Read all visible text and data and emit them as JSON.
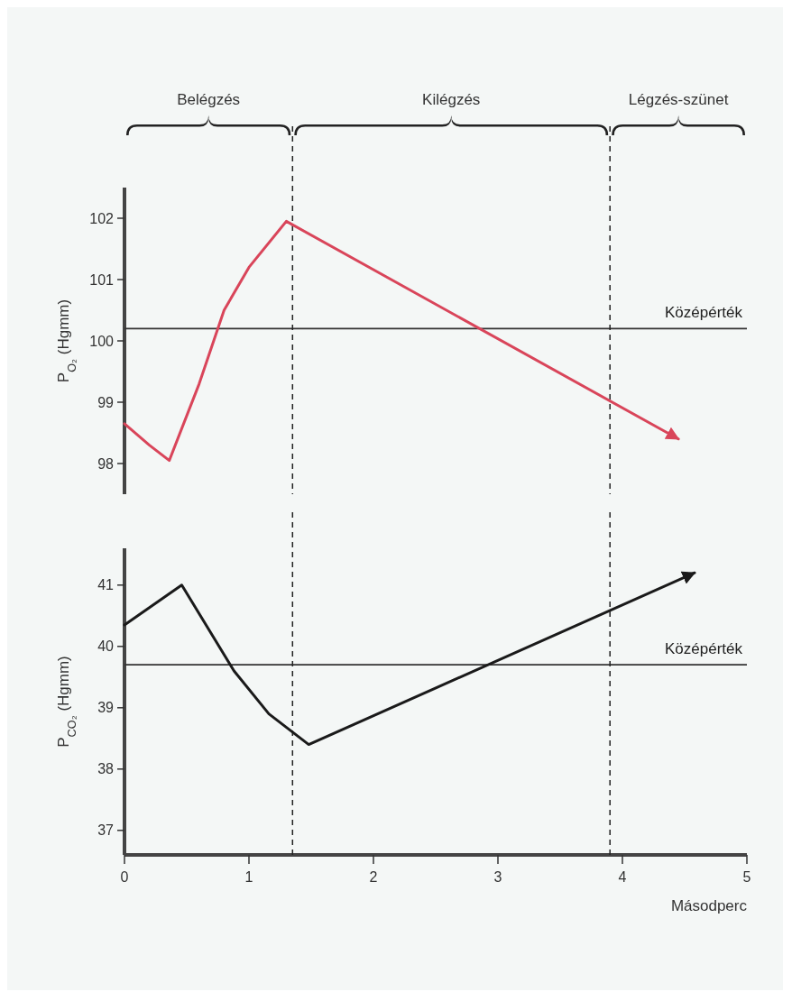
{
  "chart_data": [
    {
      "type": "line",
      "ylabel": "P$_{O₂}$ (Hgmm)",
      "xlim": [
        0,
        5
      ],
      "ylim": [
        97.5,
        102.5
      ],
      "yticks": [
        98,
        99,
        100,
        101,
        102
      ],
      "tick_labels": "y",
      "line_style": "solid",
      "marker": "none",
      "series": [
        {
          "color": "#d9455a",
          "x": [
            0,
            0.2,
            0.36,
            0.6,
            0.8,
            1.0,
            1.3,
            4.45
          ],
          "values": [
            98.65,
            98.3,
            98.05,
            99.3,
            100.5,
            101.2,
            101.95,
            98.4
          ]
        }
      ],
      "ref_lines": [
        {
          "axis": "y",
          "value": 100.2,
          "label": "Középérték",
          "color": "#333333",
          "line_style": "solid"
        },
        {
          "axis": "x",
          "value": 1.35,
          "color": "#222222",
          "line_style": "dashed"
        },
        {
          "axis": "x",
          "value": 3.9,
          "color": "#222222",
          "line_style": "dashed"
        }
      ],
      "annotations": [
        "Belégzés",
        "Kilégzés",
        "Légzés-szünet"
      ]
    },
    {
      "type": "line",
      "ylabel": "P$_{CO₂}$ (Hgmm)",
      "xlabel": "Másodperc",
      "xlim": [
        0,
        5
      ],
      "xticks": [
        0,
        1,
        2,
        3,
        4,
        5
      ],
      "ylim": [
        36.6,
        41.6
      ],
      "yticks": [
        37,
        38,
        39,
        40,
        41
      ],
      "line_style": "solid",
      "marker": "none",
      "series": [
        {
          "color": "#1a1a1a",
          "x": [
            0,
            0.46,
            0.88,
            1.16,
            1.48,
            4.58
          ],
          "values": [
            40.35,
            41.0,
            39.6,
            38.9,
            38.4,
            41.2
          ]
        }
      ],
      "ref_lines": [
        {
          "axis": "y",
          "value": 39.7,
          "label": "Középérték",
          "color": "#333333",
          "line_style": "solid"
        },
        {
          "axis": "x",
          "value": 1.35,
          "color": "#222222",
          "line_style": "dashed"
        },
        {
          "axis": "x",
          "value": 3.9,
          "color": "#222222",
          "line_style": "dashed"
        }
      ]
    }
  ]
}
